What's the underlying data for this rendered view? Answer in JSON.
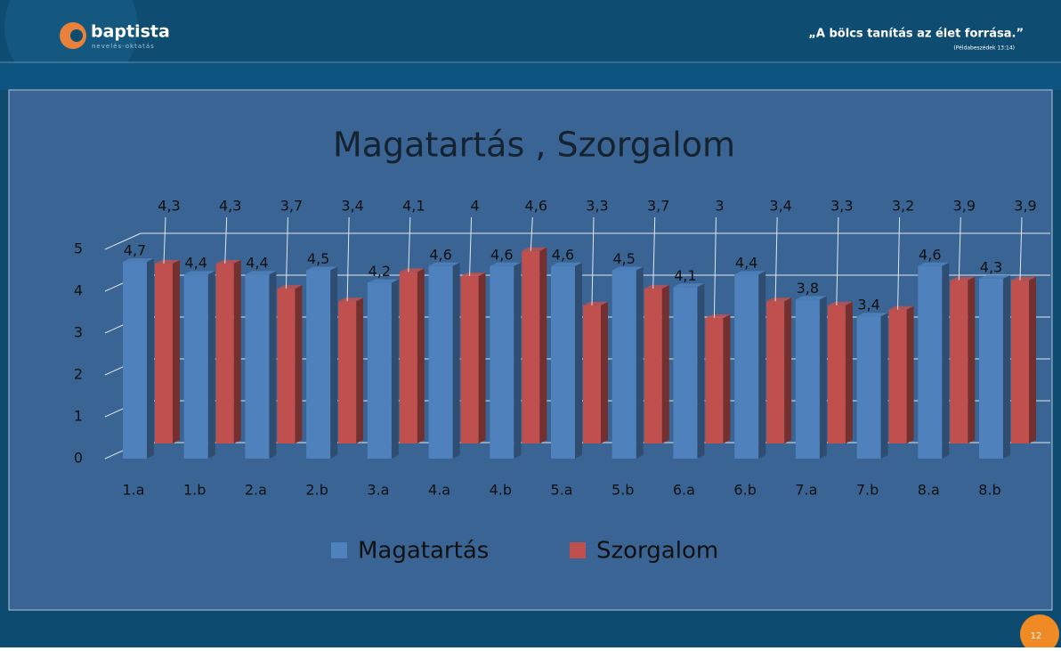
{
  "header": {
    "brand": "baptista",
    "brand_sub": "nevelés-oktatás",
    "quote": "„A bölcs tanítás az élet forrása.”",
    "quote_source": "(Példabeszédek 13:14)",
    "page_number": "12"
  },
  "chart_data": {
    "type": "bar",
    "title": "Magatartás , Szorgalom",
    "categories": [
      "1.a",
      "1.b",
      "2.a",
      "2.b",
      "3.a",
      "4.a",
      "4.b",
      "5.a",
      "5.b",
      "6.a",
      "6.b",
      "7.a",
      "7.b",
      "8.a",
      "8.b"
    ],
    "series": [
      {
        "name": "Magatartás",
        "color": "#4f81bd",
        "values": [
          4.7,
          4.4,
          4.4,
          4.5,
          4.2,
          4.6,
          4.6,
          4.6,
          4.5,
          4.1,
          4.4,
          3.8,
          3.4,
          4.6,
          4.3
        ],
        "value_labels": [
          "4,7",
          "4,4",
          "4,4",
          "4,5",
          "4,2",
          "4,6",
          "4,6",
          "4,6",
          "4,5",
          "4,1",
          "4,4",
          "3,8",
          "3,4",
          "4,6",
          "4,3"
        ]
      },
      {
        "name": "Szorgalom",
        "color": "#c0504d",
        "values": [
          4.3,
          4.3,
          3.7,
          3.4,
          4.1,
          4,
          4.6,
          3.3,
          3.7,
          3,
          3.4,
          3.3,
          3.2,
          3.9,
          3.9
        ],
        "value_labels": [
          "4,3",
          "4,3",
          "3,7",
          "3,4",
          "4,1",
          "4",
          "4,6",
          "3,3",
          "3,7",
          "3",
          "3,4",
          "3,3",
          "3,2",
          "3,9",
          "3,9"
        ]
      }
    ],
    "ylim": [
      0,
      5
    ],
    "yticks": [
      0,
      1,
      2,
      3,
      4,
      5
    ],
    "grid": true,
    "legend": "bottom"
  }
}
